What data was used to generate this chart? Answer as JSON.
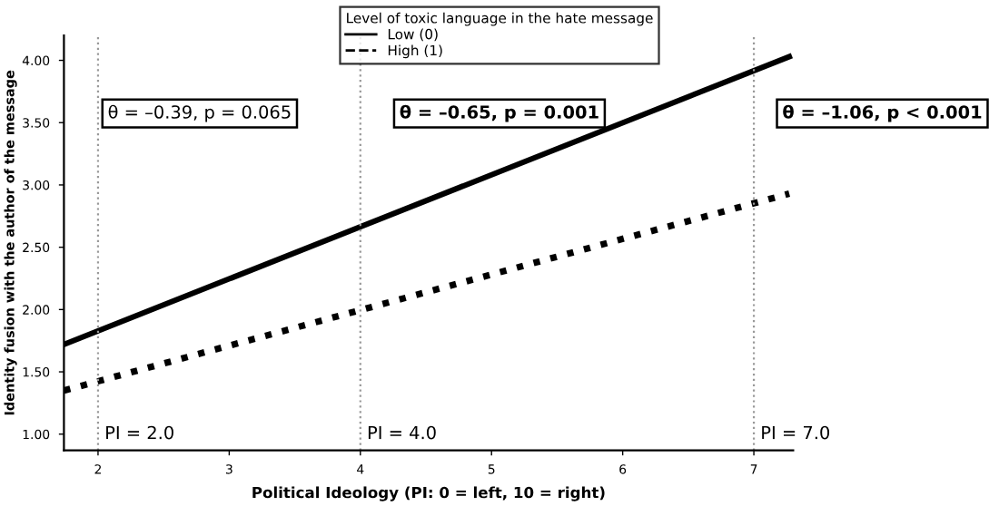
{
  "chart_data": {
    "type": "line",
    "xlabel": "Political Ideology (PI: 0 = left, 10 = right)",
    "ylabel": "Identity fusion with the author of the message",
    "legend_title": "Level of toxic language in the hate message",
    "legend": "top",
    "grid": false,
    "x": [
      1.74,
      7.27
    ],
    "series": [
      {
        "name": "Low (0)",
        "color": "#000000",
        "values": [
          1.72,
          4.03
        ],
        "line_style": "solid"
      },
      {
        "name": "High (1)",
        "color": "#000000",
        "values": [
          1.35,
          2.93
        ],
        "line_style": "dotted"
      }
    ],
    "xlim": [
      1.74,
      7.3
    ],
    "ylim": [
      0.87,
      4.2
    ],
    "xticks": [
      2,
      3,
      4,
      5,
      6,
      7
    ],
    "yticks": [
      {
        "value": 1,
        "label": "1.00"
      },
      {
        "value": 1.5,
        "label": "1.50"
      },
      {
        "value": 2,
        "label": "2.00"
      },
      {
        "value": 2.5,
        "label": "2.50"
      },
      {
        "value": 3,
        "label": "3.00"
      },
      {
        "value": 3.5,
        "label": "3.50"
      },
      {
        "value": 4,
        "label": "4.00"
      }
    ],
    "ref_lines": [
      {
        "axis": "x",
        "value": 2,
        "label": "PI = 2.0",
        "color": "#999999",
        "line_style": "dotted"
      },
      {
        "axis": "x",
        "value": 4,
        "label": "PI = 4.0",
        "color": "#999999",
        "line_style": "dotted"
      },
      {
        "axis": "x",
        "value": 7,
        "label": "PI = 7.0",
        "color": "#999999",
        "line_style": "dotted"
      }
    ],
    "annotations": [
      "θ = –0.39, p = 0.065",
      "θ = –0.65, p = 0.001",
      "θ = –1.06, p < 0.001"
    ]
  }
}
